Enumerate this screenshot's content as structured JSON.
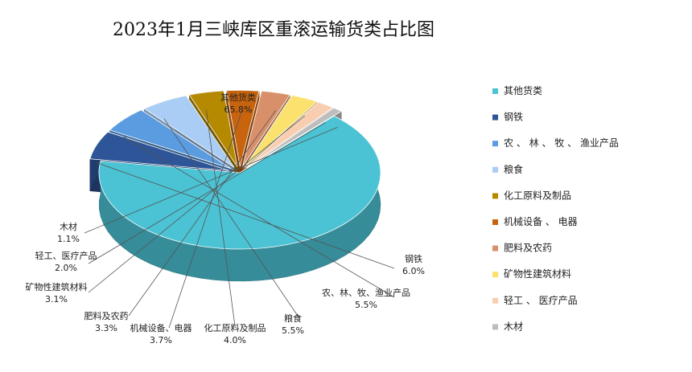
{
  "chart_data": {
    "type": "pie",
    "title": "2023年1月三峡库区重滚运输货类占比图",
    "slices": [
      {
        "name": "其他货类",
        "value": 65.8,
        "label": "65.8%",
        "color": "#4BC3D4"
      },
      {
        "name": "钢铁",
        "value": 6.0,
        "label": "6.0%",
        "color": "#2E5597"
      },
      {
        "name": "农、林、牧、渔业产品",
        "value": 5.5,
        "label": "5.5%",
        "color": "#5B9BE0"
      },
      {
        "name": "粮食",
        "value": 5.5,
        "label": "5.5%",
        "color": "#A9CDF5"
      },
      {
        "name": "化工原料及制品",
        "value": 4.0,
        "label": "4.0%",
        "color": "#B58900"
      },
      {
        "name": "机械设备、电器",
        "value": 3.7,
        "label": "3.7%",
        "color": "#C8640E"
      },
      {
        "name": "肥料及农药",
        "value": 3.3,
        "label": "3.3%",
        "color": "#D8906A"
      },
      {
        "name": "矿物性建筑材料",
        "value": 3.1,
        "label": "3.1%",
        "color": "#FBE16E"
      },
      {
        "name": "轻工、医疗产品",
        "value": 2.0,
        "label": "2.0%",
        "color": "#F9CDB0"
      },
      {
        "name": "木材",
        "value": 1.1,
        "label": "1.1%",
        "color": "#BDBDBD"
      }
    ],
    "legend": [
      "其他货类",
      "钢铁",
      "农 、 林 、 牧 、 渔业产品",
      "粮食",
      "化工原料及制品",
      "机械设备 、 电器",
      "肥料及农药",
      "矿物性建筑材料",
      "轻工 、 医疗产品",
      "木材"
    ],
    "legend_position": "right"
  }
}
